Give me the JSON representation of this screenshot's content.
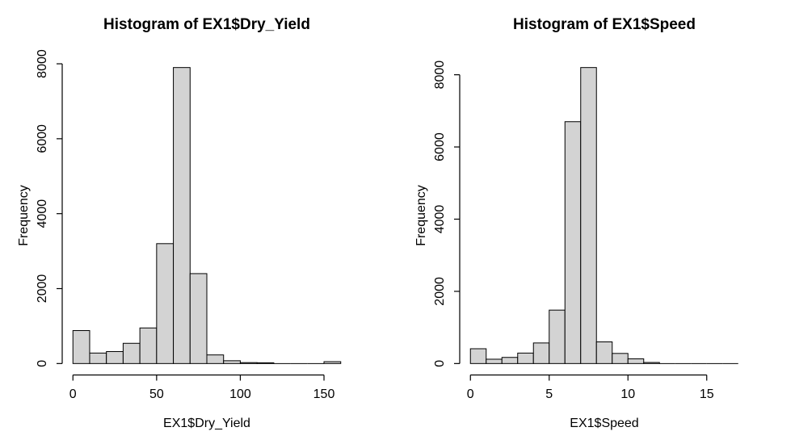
{
  "page": {
    "background": "#ffffff",
    "description": "R graphics device output: two base-R histograms side by side"
  },
  "chart_data": [
    {
      "type": "bar",
      "subtype": "histogram",
      "title": "Histogram of EX1$Dry_Yield",
      "xlabel": "EX1$Dry_Yield",
      "ylabel": "Frequency",
      "bin_start": 0,
      "bin_width": 10,
      "categories": [
        "0-10",
        "10-20",
        "20-30",
        "30-40",
        "40-50",
        "50-60",
        "60-70",
        "70-80",
        "80-90",
        "90-100",
        "100-110",
        "110-120",
        "120-130",
        "130-140",
        "140-150",
        "150-160"
      ],
      "values": [
        880,
        280,
        320,
        540,
        950,
        3200,
        7900,
        2400,
        230,
        75,
        25,
        20,
        0,
        0,
        0,
        50
      ],
      "x_ticks": [
        0,
        50,
        100,
        150
      ],
      "y_ticks": [
        0,
        2000,
        4000,
        6000,
        8000
      ],
      "xlim": [
        0,
        160
      ],
      "ylim": [
        0,
        7900
      ],
      "grid": false,
      "legend": false,
      "bar_fill": "#d3d3d3",
      "bar_stroke": "#000000",
      "text_color": "#000000"
    },
    {
      "type": "bar",
      "subtype": "histogram",
      "title": "Histogram of EX1$Speed",
      "xlabel": "EX1$Speed",
      "ylabel": "Frequency",
      "bin_start": 0,
      "bin_width": 1,
      "categories": [
        "0-1",
        "1-2",
        "2-3",
        "3-4",
        "4-5",
        "5-6",
        "6-7",
        "7-8",
        "8-9",
        "9-10",
        "10-11",
        "11-12",
        "12-13",
        "13-14",
        "14-15",
        "15-16",
        "16-17"
      ],
      "values": [
        410,
        120,
        170,
        290,
        570,
        1480,
        6700,
        8200,
        600,
        280,
        130,
        30,
        0,
        0,
        0,
        0,
        0
      ],
      "x_ticks": [
        0,
        5,
        10,
        15
      ],
      "y_ticks": [
        0,
        2000,
        4000,
        6000,
        8000
      ],
      "xlim": [
        0,
        17
      ],
      "ylim": [
        0,
        8200
      ],
      "grid": false,
      "legend": false,
      "bar_fill": "#d3d3d3",
      "bar_stroke": "#000000",
      "text_color": "#000000"
    }
  ]
}
